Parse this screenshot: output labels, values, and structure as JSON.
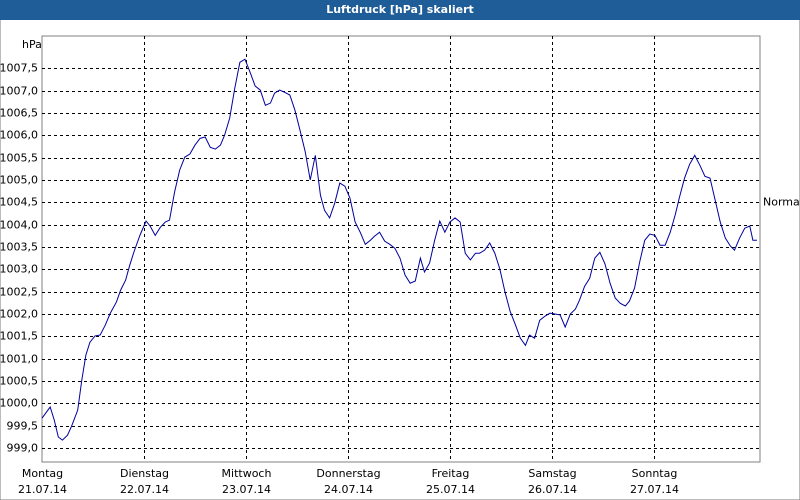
{
  "chart_data": {
    "type": "line",
    "title": "Luftdruck [hPa] skaliert",
    "y_label": "hPa",
    "grid": true,
    "annotations": [
      {
        "text": "Normal",
        "y": 1004.5
      }
    ],
    "xlim": [
      0,
      7.04
    ],
    "ylim": [
      998.69,
      1008.22
    ],
    "xticks": [
      {
        "value": 0,
        "label": "Montag",
        "date": "21.07.14"
      },
      {
        "value": 1,
        "label": "Dienstag",
        "date": "22.07.14"
      },
      {
        "value": 2,
        "label": "Mittwoch",
        "date": "23.07.14"
      },
      {
        "value": 3,
        "label": "Donnerstag",
        "date": "24.07.14"
      },
      {
        "value": 4,
        "label": "Freitag",
        "date": "25.07.14"
      },
      {
        "value": 5,
        "label": "Samstag",
        "date": "26.07.14"
      },
      {
        "value": 6,
        "label": "Sonntag",
        "date": "27.07.14"
      }
    ],
    "yticks": [
      {
        "value": 999,
        "label": "999,0"
      },
      {
        "value": 999.5,
        "label": "999,5"
      },
      {
        "value": 1000,
        "label": "1000,0"
      },
      {
        "value": 1000.5,
        "label": "1000,5"
      },
      {
        "value": 1001,
        "label": "1001,0"
      },
      {
        "value": 1001.5,
        "label": "1001,5"
      },
      {
        "value": 1002,
        "label": "1002,0"
      },
      {
        "value": 1002.5,
        "label": "1002,5"
      },
      {
        "value": 1003,
        "label": "1003,0"
      },
      {
        "value": 1003.5,
        "label": "1003,5"
      },
      {
        "value": 1004,
        "label": "1004,0"
      },
      {
        "value": 1004.5,
        "label": "1004,5"
      },
      {
        "value": 1005,
        "label": "1005,0"
      },
      {
        "value": 1005.5,
        "label": "1005,5"
      },
      {
        "value": 1006,
        "label": "1006,0"
      },
      {
        "value": 1006.5,
        "label": "1006,5"
      },
      {
        "value": 1007,
        "label": "1007,0"
      },
      {
        "value": 1007.5,
        "label": "1007,5"
      }
    ],
    "series": [
      {
        "name": "Luftdruck",
        "color": "#0000a0",
        "x": [
          0,
          0.08,
          0.12,
          0.16,
          0.2,
          0.25,
          0.29,
          0.35,
          0.39,
          0.43,
          0.47,
          0.52,
          0.57,
          0.62,
          0.67,
          0.73,
          0.77,
          0.82,
          0.86,
          0.9,
          0.96,
          1.02,
          1.06,
          1.11,
          1.16,
          1.21,
          1.25,
          1.3,
          1.35,
          1.4,
          1.45,
          1.5,
          1.55,
          1.6,
          1.65,
          1.7,
          1.75,
          1.79,
          1.84,
          1.89,
          1.94,
          1.99,
          2.04,
          2.09,
          2.14,
          2.19,
          2.24,
          2.28,
          2.33,
          2.38,
          2.43,
          2.48,
          2.53,
          2.58,
          2.63,
          2.68,
          2.73,
          2.77,
          2.82,
          2.87,
          2.92,
          2.97,
          3.02,
          3.07,
          3.12,
          3.17,
          3.22,
          3.26,
          3.31,
          3.36,
          3.41,
          3.46,
          3.51,
          3.56,
          3.61,
          3.66,
          3.71,
          3.75,
          3.8,
          3.85,
          3.9,
          3.95,
          4.0,
          4.05,
          4.1,
          4.15,
          4.2,
          4.25,
          4.29,
          4.34,
          4.39,
          4.44,
          4.49,
          4.54,
          4.59,
          4.64,
          4.69,
          4.74,
          4.78,
          4.83,
          4.88,
          4.93,
          4.98,
          5.03,
          5.08,
          5.13,
          5.18,
          5.23,
          5.27,
          5.32,
          5.37,
          5.42,
          5.47,
          5.52,
          5.57,
          5.62,
          5.67,
          5.72,
          5.76,
          5.81,
          5.86,
          5.91,
          5.96,
          6.01,
          6.06,
          6.11,
          6.16,
          6.21,
          6.25,
          6.3,
          6.35,
          6.4,
          6.45,
          6.5,
          6.55,
          6.6,
          6.65,
          6.7,
          6.75,
          6.79,
          6.84,
          6.89,
          6.94,
          6.97,
          7.01
        ],
        "values": [
          999.67,
          999.92,
          999.63,
          999.25,
          999.18,
          999.29,
          999.49,
          999.85,
          1000.52,
          1001.08,
          1001.37,
          1001.51,
          1001.53,
          1001.75,
          1002.02,
          1002.27,
          1002.53,
          1002.76,
          1003.09,
          1003.38,
          1003.76,
          1004.08,
          1003.97,
          1003.76,
          1003.94,
          1004.06,
          1004.1,
          1004.73,
          1005.22,
          1005.51,
          1005.58,
          1005.78,
          1005.93,
          1005.96,
          1005.73,
          1005.69,
          1005.78,
          1006.0,
          1006.38,
          1007.05,
          1007.63,
          1007.7,
          1007.41,
          1007.1,
          1007.01,
          1006.67,
          1006.72,
          1006.94,
          1007.01,
          1006.96,
          1006.9,
          1006.56,
          1006.11,
          1005.64,
          1005.0,
          1005.55,
          1004.66,
          1004.32,
          1004.15,
          1004.48,
          1004.93,
          1004.86,
          1004.59,
          1004.06,
          1003.83,
          1003.56,
          1003.65,
          1003.74,
          1003.83,
          1003.63,
          1003.56,
          1003.47,
          1003.25,
          1002.87,
          1002.69,
          1002.74,
          1003.25,
          1002.94,
          1003.14,
          1003.65,
          1004.08,
          1003.83,
          1004.06,
          1004.15,
          1004.06,
          1003.36,
          1003.21,
          1003.36,
          1003.36,
          1003.43,
          1003.59,
          1003.36,
          1003.0,
          1002.49,
          1002.06,
          1001.77,
          1001.46,
          1001.3,
          1001.53,
          1001.46,
          1001.86,
          1001.95,
          1002.02,
          1002.0,
          1001.98,
          1001.71,
          1002.0,
          1002.11,
          1002.31,
          1002.62,
          1002.8,
          1003.25,
          1003.38,
          1003.12,
          1002.69,
          1002.36,
          1002.24,
          1002.18,
          1002.29,
          1002.58,
          1003.16,
          1003.65,
          1003.79,
          1003.76,
          1003.54,
          1003.54,
          1003.83,
          1004.23,
          1004.61,
          1005.04,
          1005.35,
          1005.55,
          1005.33,
          1005.08,
          1005.04,
          1004.55,
          1004.06,
          1003.7,
          1003.52,
          1003.43,
          1003.7,
          1003.92,
          1003.97,
          1003.65,
          1003.65
        ]
      }
    ]
  }
}
